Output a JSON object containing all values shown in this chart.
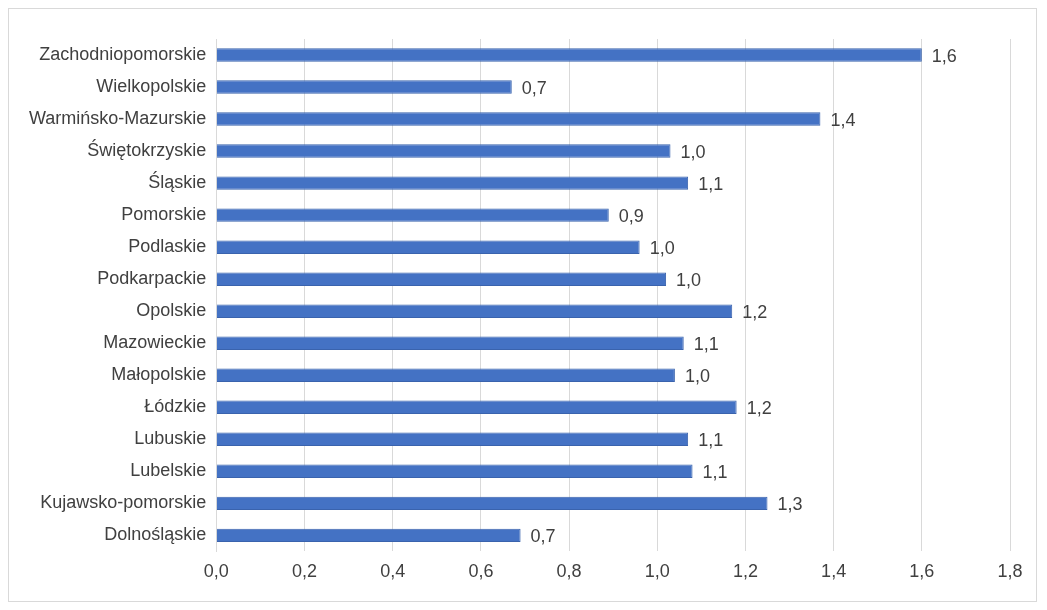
{
  "chart_data": {
    "type": "bar",
    "orientation": "horizontal",
    "categories": [
      "Zachodniopomorskie",
      "Wielkopolskie",
      "Warmińsko-Mazurskie",
      "Świętokrzyskie",
      "Śląskie",
      "Pomorskie",
      "Podlaskie",
      "Podkarpackie",
      "Opolskie",
      "Mazowieckie",
      "Małopolskie",
      "Łódzkie",
      "Lubuskie",
      "Lubelskie",
      "Kujawsko-pomorskie",
      "Dolnośląskie"
    ],
    "values": [
      1.6,
      0.67,
      1.37,
      1.03,
      1.07,
      0.89,
      0.96,
      1.02,
      1.17,
      1.06,
      1.04,
      1.18,
      1.07,
      1.08,
      1.25,
      0.69
    ],
    "value_labels": [
      "1,6",
      "0,7",
      "1,4",
      "1,0",
      "1,1",
      "0,9",
      "1,0",
      "1,0",
      "1,2",
      "1,1",
      "1,0",
      "1,2",
      "1,1",
      "1,1",
      "1,3",
      "0,7"
    ],
    "color": "#4472c4",
    "xlim": [
      0,
      1.8
    ],
    "xticks": [
      {
        "value": 0,
        "label": "0,0"
      },
      {
        "value": 0.2,
        "label": "0,2"
      },
      {
        "value": 0.4,
        "label": "0,4"
      },
      {
        "value": 0.6,
        "label": "0,6"
      },
      {
        "value": 0.8,
        "label": "0,8"
      },
      {
        "value": 1,
        "label": "1,0"
      },
      {
        "value": 1.2,
        "label": "1,2"
      },
      {
        "value": 1.4,
        "label": "1,4"
      },
      {
        "value": 1.6,
        "label": "1,6"
      },
      {
        "value": 1.8,
        "label": "1,8"
      }
    ],
    "grid": "x"
  }
}
